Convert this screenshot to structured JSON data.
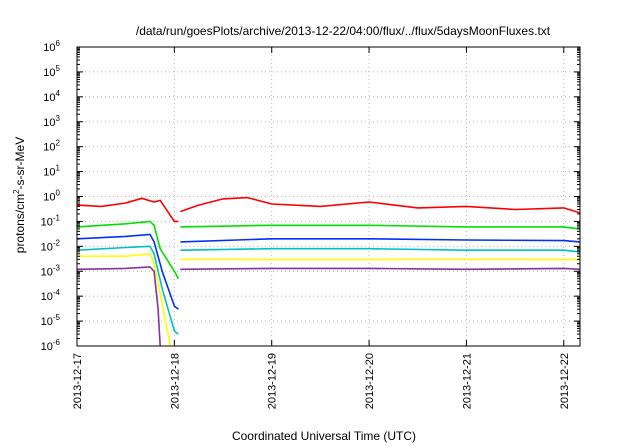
{
  "chart_data": {
    "type": "line",
    "title": "/data/run/goesPlots/archive/2013-12-22/04:00/flux/../flux/5daysMoonFluxes.txt",
    "xlabel": "Coordinated Universal Time (UTC)",
    "ylabel": {
      "prefix": "protons/cm",
      "superscript": "2",
      "suffix": "-s-sr-MeV"
    },
    "y_scale": "log",
    "y_ticks": [
      {
        "base": "10",
        "exp": "-6",
        "value": 1e-06
      },
      {
        "base": "10",
        "exp": "-5",
        "value": 1e-05
      },
      {
        "base": "10",
        "exp": "-4",
        "value": 0.0001
      },
      {
        "base": "10",
        "exp": "-3",
        "value": 0.001
      },
      {
        "base": "10",
        "exp": "-2",
        "value": 0.01
      },
      {
        "base": "10",
        "exp": "-1",
        "value": 0.1
      },
      {
        "base": "10",
        "exp": "0",
        "value": 1
      },
      {
        "base": "10",
        "exp": "1",
        "value": 10
      },
      {
        "base": "10",
        "exp": "2",
        "value": 100
      },
      {
        "base": "10",
        "exp": "3",
        "value": 1000
      },
      {
        "base": "10",
        "exp": "4",
        "value": 10000
      },
      {
        "base": "10",
        "exp": "5",
        "value": 100000
      },
      {
        "base": "10",
        "exp": "6",
        "value": 1000000
      }
    ],
    "ylim": [
      1e-06,
      1000000.0
    ],
    "x_ticks": [
      "2013-12-17",
      "2013-12-18",
      "2013-12-19",
      "2013-12-20",
      "2013-12-21",
      "2013-12-22"
    ],
    "xlim": [
      "2013-12-17T00:00",
      "2013-12-22T04:00"
    ],
    "grid": true,
    "legend": "none",
    "series": [
      {
        "color": "#ff0000",
        "segments": [
          {
            "x": [
              "2013-12-17T00:00",
              "2013-12-17T06:00",
              "2013-12-17T12:00",
              "2013-12-17T16:00",
              "2013-12-17T19:00",
              "2013-12-17T20:30",
              "2013-12-18T00:00",
              "2013-12-18T01:00"
            ],
            "y": [
              0.45,
              0.4,
              0.55,
              0.85,
              0.6,
              0.7,
              0.1,
              0.1
            ]
          },
          {
            "x": [
              "2013-12-18T01:30",
              "2013-12-18T06:00",
              "2013-12-18T12:00",
              "2013-12-18T18:00",
              "2013-12-19T00:00",
              "2013-12-19T12:00",
              "2013-12-20T00:00",
              "2013-12-20T12:00",
              "2013-12-21T00:00",
              "2013-12-21T12:00",
              "2013-12-22T00:00",
              "2013-12-22T04:00"
            ],
            "y": [
              0.25,
              0.45,
              0.8,
              0.9,
              0.5,
              0.4,
              0.6,
              0.35,
              0.4,
              0.3,
              0.35,
              0.22
            ]
          }
        ]
      },
      {
        "color": "#00e000",
        "segments": [
          {
            "x": [
              "2013-12-17T00:00",
              "2013-12-17T12:00",
              "2013-12-17T18:00",
              "2013-12-17T19:00",
              "2013-12-17T20:30",
              "2013-12-18T00:00",
              "2013-12-18T01:00"
            ],
            "y": [
              0.06,
              0.08,
              0.1,
              0.07,
              0.008,
              0.001,
              0.0005
            ]
          },
          {
            "x": [
              "2013-12-18T01:30",
              "2013-12-19T00:00",
              "2013-12-20T00:00",
              "2013-12-21T00:00",
              "2013-12-22T00:00",
              "2013-12-22T04:00"
            ],
            "y": [
              0.06,
              0.07,
              0.07,
              0.06,
              0.06,
              0.05
            ]
          }
        ]
      },
      {
        "color": "#0030ff",
        "segments": [
          {
            "x": [
              "2013-12-17T00:00",
              "2013-12-17T12:00",
              "2013-12-17T18:00",
              "2013-12-17T19:00",
              "2013-12-17T21:00",
              "2013-12-18T00:00",
              "2013-12-18T01:00"
            ],
            "y": [
              0.02,
              0.025,
              0.03,
              0.015,
              0.001,
              4e-05,
              3e-05
            ]
          },
          {
            "x": [
              "2013-12-18T01:30",
              "2013-12-19T00:00",
              "2013-12-20T00:00",
              "2013-12-21T00:00",
              "2013-12-22T00:00",
              "2013-12-22T04:00"
            ],
            "y": [
              0.015,
              0.02,
              0.02,
              0.018,
              0.017,
              0.015
            ]
          }
        ]
      },
      {
        "color": "#00c0c0",
        "segments": [
          {
            "x": [
              "2013-12-17T00:00",
              "2013-12-17T12:00",
              "2013-12-17T18:00",
              "2013-12-17T19:00",
              "2013-12-17T21:00",
              "2013-12-18T00:00",
              "2013-12-18T01:00"
            ],
            "y": [
              0.007,
              0.009,
              0.01,
              0.005,
              0.0002,
              4e-06,
              3e-06
            ]
          },
          {
            "x": [
              "2013-12-18T01:30",
              "2013-12-19T00:00",
              "2013-12-20T00:00",
              "2013-12-21T00:00",
              "2013-12-22T00:00",
              "2013-12-22T04:00"
            ],
            "y": [
              0.007,
              0.008,
              0.008,
              0.007,
              0.007,
              0.006
            ]
          }
        ]
      },
      {
        "color": "#ffff00",
        "segments": [
          {
            "x": [
              "2013-12-17T00:00",
              "2013-12-17T12:00",
              "2013-12-17T18:00",
              "2013-12-17T19:00",
              "2013-12-17T21:00",
              "2013-12-17T23:00"
            ],
            "y": [
              0.004,
              0.004,
              0.005,
              0.002,
              5e-05,
              1e-06
            ]
          },
          {
            "x": [
              "2013-12-18T01:30",
              "2013-12-19T00:00",
              "2013-12-20T00:00",
              "2013-12-21T00:00",
              "2013-12-22T00:00",
              "2013-12-22T04:00"
            ],
            "y": [
              0.003,
              0.003,
              0.003,
              0.003,
              0.003,
              0.003
            ]
          }
        ]
      },
      {
        "color": "#8b2fa0",
        "segments": [
          {
            "x": [
              "2013-12-17T00:00",
              "2013-12-17T12:00",
              "2013-12-17T18:00",
              "2013-12-17T19:00",
              "2013-12-17T20:00",
              "2013-12-17T20:30"
            ],
            "y": [
              0.0012,
              0.0013,
              0.0015,
              0.001,
              3e-05,
              1e-06
            ]
          },
          {
            "x": [
              "2013-12-18T01:30",
              "2013-12-19T00:00",
              "2013-12-20T00:00",
              "2013-12-21T00:00",
              "2013-12-22T00:00",
              "2013-12-22T04:00"
            ],
            "y": [
              0.0012,
              0.0013,
              0.0013,
              0.0012,
              0.0013,
              0.0012
            ]
          }
        ]
      }
    ]
  }
}
